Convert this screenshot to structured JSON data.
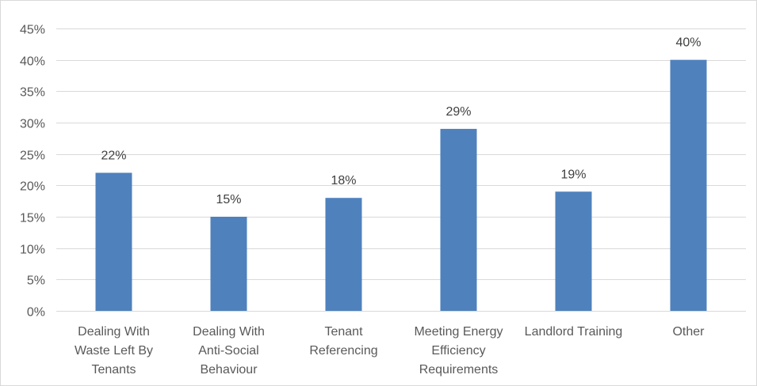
{
  "chart_data": {
    "type": "bar",
    "title": "",
    "xlabel": "",
    "ylabel": "",
    "categories": [
      [
        "Dealing With",
        "Waste Left By",
        "Tenants"
      ],
      [
        "Dealing With",
        "Anti-Social",
        "Behaviour"
      ],
      [
        "Tenant",
        "Referencing"
      ],
      [
        "Meeting Energy",
        "Efficiency",
        "Requirements"
      ],
      [
        "Landlord Training"
      ],
      [
        "Other"
      ]
    ],
    "values": [
      22,
      15,
      18,
      29,
      19,
      40
    ],
    "data_labels": [
      "22%",
      "15%",
      "18%",
      "29%",
      "19%",
      "40%"
    ],
    "ylim": [
      0,
      45
    ],
    "yticks": [
      0,
      5,
      10,
      15,
      20,
      25,
      30,
      35,
      40,
      45
    ],
    "ytick_labels": [
      "0%",
      "5%",
      "10%",
      "15%",
      "20%",
      "25%",
      "30%",
      "35%",
      "40%",
      "45%"
    ],
    "grid": true,
    "legend": "none",
    "colors": {
      "bar": "#4f81bd",
      "grid": "#d9d9d9",
      "text": "#595959",
      "label": "#404040"
    }
  }
}
